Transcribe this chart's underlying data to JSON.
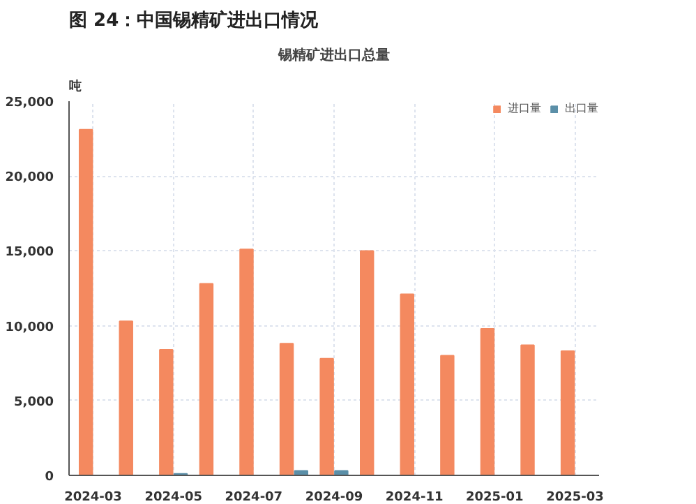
{
  "chart_data": {
    "type": "bar",
    "title": "图 24：中国锡精矿进出口情况",
    "subtitle": "锡精矿进出口总量",
    "ylabel": "吨",
    "categories": [
      "2024-03",
      null,
      "2024-05",
      null,
      "2024-07",
      null,
      "2024-09",
      null,
      "2024-11",
      null,
      "2025-01",
      null,
      "2025-03"
    ],
    "series": [
      {
        "name": "进口量",
        "color": "#f4895f",
        "values": [
          23100,
          10300,
          8400,
          12800,
          15100,
          8800,
          7800,
          15000,
          12100,
          8000,
          9800,
          8700,
          8300
        ]
      },
      {
        "name": "出口量",
        "color": "#5b8fa8",
        "values": [
          0,
          0,
          100,
          0,
          0,
          300,
          300,
          0,
          0,
          0,
          0,
          0,
          0
        ]
      }
    ],
    "ylim": [
      0,
      25000
    ],
    "yticks": [
      {
        "value": 0,
        "label": "0"
      },
      {
        "value": 5000,
        "label": "5,000"
      },
      {
        "value": 10000,
        "label": "10,000"
      },
      {
        "value": 15000,
        "label": "15,000"
      },
      {
        "value": 20000,
        "label": "20,000"
      },
      {
        "value": 25000,
        "label": "25,000"
      }
    ],
    "grid": true,
    "legend": "top right"
  }
}
